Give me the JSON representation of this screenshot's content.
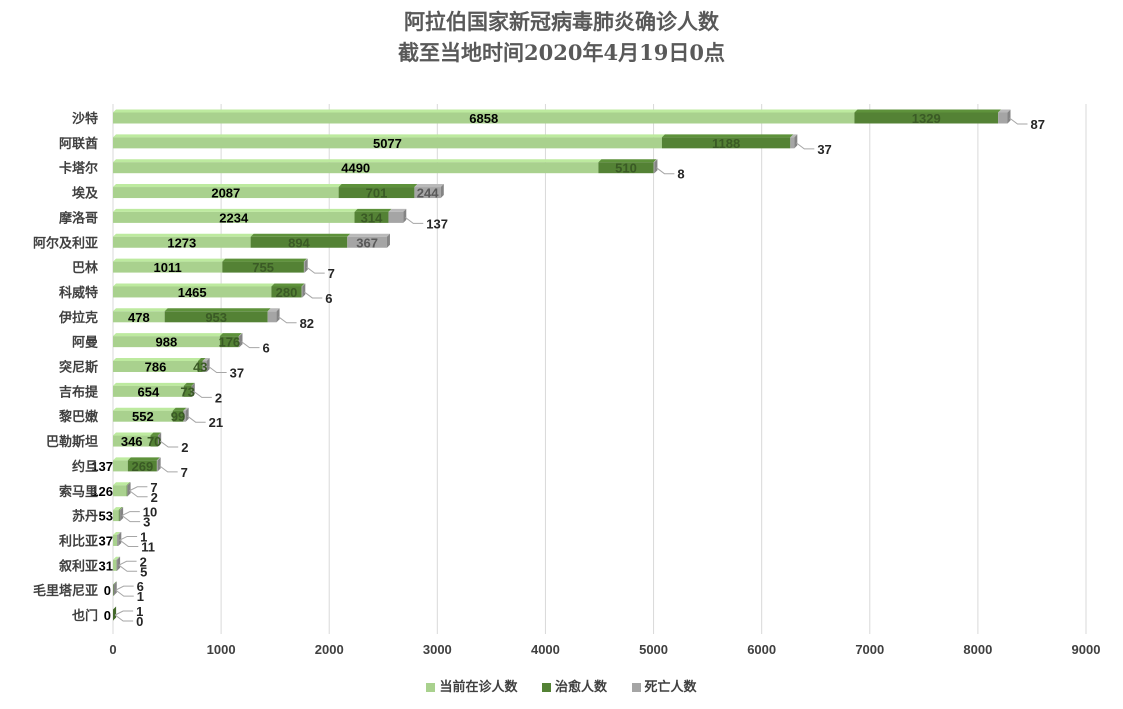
{
  "chart_data": {
    "type": "bar",
    "orientation": "horizontal",
    "stacked": true,
    "title": "阿拉伯国家新冠病毒肺炎确诊人数",
    "subtitle": "截至当地时间2020年4月19日0点",
    "categories": [
      "沙特",
      "阿联酋",
      "卡塔尔",
      "埃及",
      "摩洛哥",
      "阿尔及利亚",
      "巴林",
      "科威特",
      "伊拉克",
      "阿曼",
      "突尼斯",
      "吉布提",
      "黎巴嫩",
      "巴勒斯坦",
      "约旦",
      "索马里",
      "苏丹",
      "利比亚",
      "叙利亚",
      "毛里塔尼亚",
      "也门"
    ],
    "series": [
      {
        "name": "当前在诊人数",
        "color": "#a9d18e",
        "values": [
          6858,
          5077,
          4490,
          2087,
          2234,
          1273,
          1011,
          1465,
          478,
          988,
          786,
          654,
          552,
          346,
          137,
          126,
          53,
          37,
          31,
          0,
          0
        ]
      },
      {
        "name": "治愈人数",
        "color": "#548235",
        "values": [
          1329,
          1188,
          510,
          701,
          314,
          894,
          755,
          280,
          953,
          176,
          43,
          73,
          99,
          70,
          269,
          7,
          10,
          1,
          2,
          6,
          1
        ]
      },
      {
        "name": "死亡人数",
        "color": "#a5a5a5",
        "values": [
          87,
          37,
          8,
          244,
          137,
          367,
          7,
          6,
          82,
          6,
          37,
          2,
          21,
          2,
          7,
          2,
          3,
          11,
          5,
          1,
          0
        ]
      }
    ],
    "xlim": [
      0,
      9000
    ],
    "xticks": [
      "0",
      "1000",
      "2000",
      "3000",
      "4000",
      "5000",
      "6000",
      "7000",
      "8000",
      "9000"
    ],
    "grid": true,
    "legend_position": "bottom"
  }
}
